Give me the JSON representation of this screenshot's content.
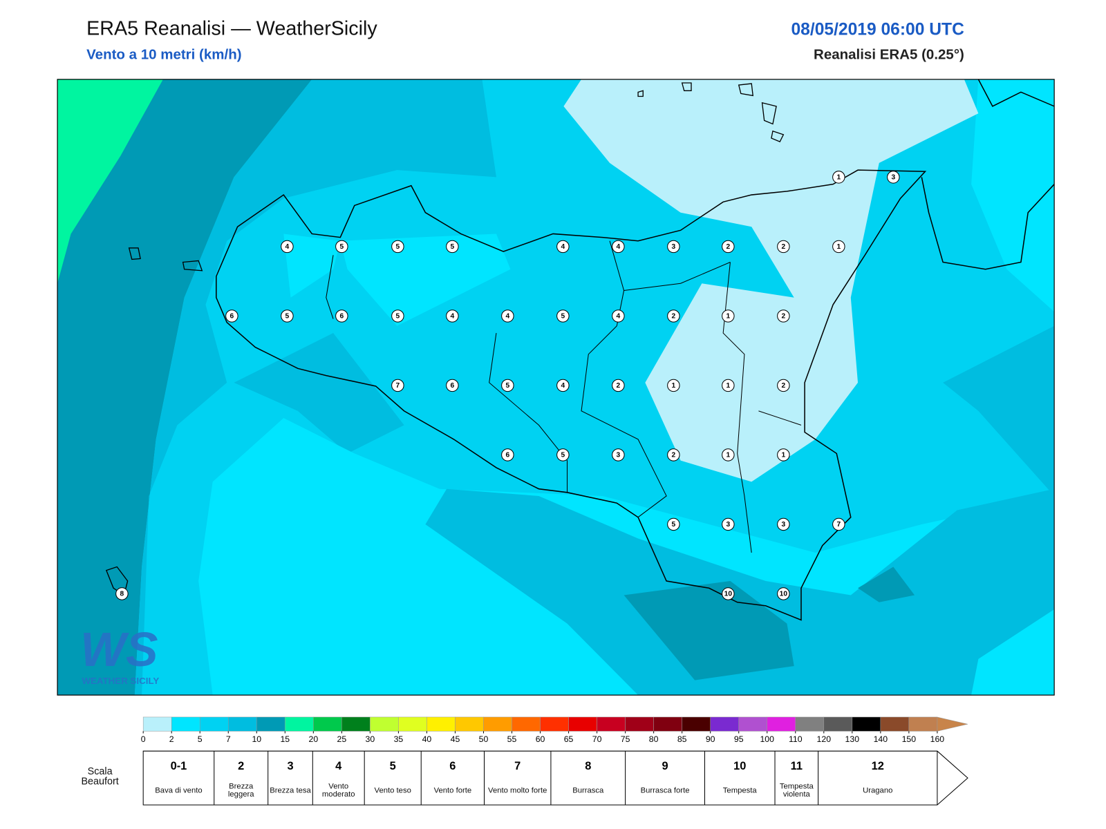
{
  "header": {
    "title": "ERA5 Reanalisi — WeatherSicily",
    "subtitle": "Vento a 10 metri (km/h)",
    "datetime": "08/05/2019 06:00 UTC",
    "source": "Reanalisi ERA5 (0.25°)"
  },
  "logo": {
    "mark": "WS",
    "text": "WEATHER SICILY"
  },
  "map": {
    "points": [
      "1",
      "3",
      "4",
      "5",
      "5",
      "5",
      "4",
      "4",
      "3",
      "2",
      "2",
      "1",
      "6",
      "5",
      "6",
      "5",
      "4",
      "4",
      "5",
      "4",
      "2",
      "1",
      "2",
      "7",
      "6",
      "5",
      "4",
      "2",
      "1",
      "1",
      "2",
      "6",
      "5",
      "3",
      "2",
      "1",
      "1",
      "5",
      "3",
      "3",
      "7",
      "10",
      "10",
      "8"
    ]
  },
  "colorbar": {
    "ticks": [
      0,
      2,
      5,
      7,
      10,
      15,
      20,
      25,
      30,
      35,
      40,
      45,
      50,
      55,
      60,
      65,
      70,
      75,
      80,
      85,
      90,
      95,
      100,
      110,
      120,
      130,
      140,
      150,
      160
    ],
    "colors": [
      "#b9f0fb",
      "#00e5ff",
      "#00d2f2",
      "#00bde0",
      "#009ab5",
      "#00f5a0",
      "#00c94c",
      "#00801c",
      "#c0ff30",
      "#e0ff20",
      "#fff000",
      "#ffc800",
      "#ff9c00",
      "#ff6800",
      "#ff3000",
      "#e80000",
      "#c80020",
      "#a00018",
      "#800010",
      "#4a0000",
      "#7a2ad0",
      "#b050d0",
      "#e020e0",
      "#808080",
      "#5a5a5a",
      "#000000",
      "#8a4a2a",
      "#c08050"
    ],
    "extend_color": "#c8844a"
  },
  "beaufort": {
    "label": "Scala Beaufort",
    "levels": [
      {
        "force": "0-1",
        "name": "Bava di vento"
      },
      {
        "force": "2",
        "name": "Brezza leggera"
      },
      {
        "force": "3",
        "name": "Brezza tesa"
      },
      {
        "force": "4",
        "name": "Vento moderato"
      },
      {
        "force": "5",
        "name": "Vento teso"
      },
      {
        "force": "6",
        "name": "Vento forte"
      },
      {
        "force": "7",
        "name": "Vento molto forte"
      },
      {
        "force": "8",
        "name": "Burrasca"
      },
      {
        "force": "9",
        "name": "Burrasca forte"
      },
      {
        "force": "10",
        "name": "Tempesta"
      },
      {
        "force": "11",
        "name": "Tempesta violenta"
      },
      {
        "force": "12",
        "name": "Uragano"
      }
    ]
  }
}
